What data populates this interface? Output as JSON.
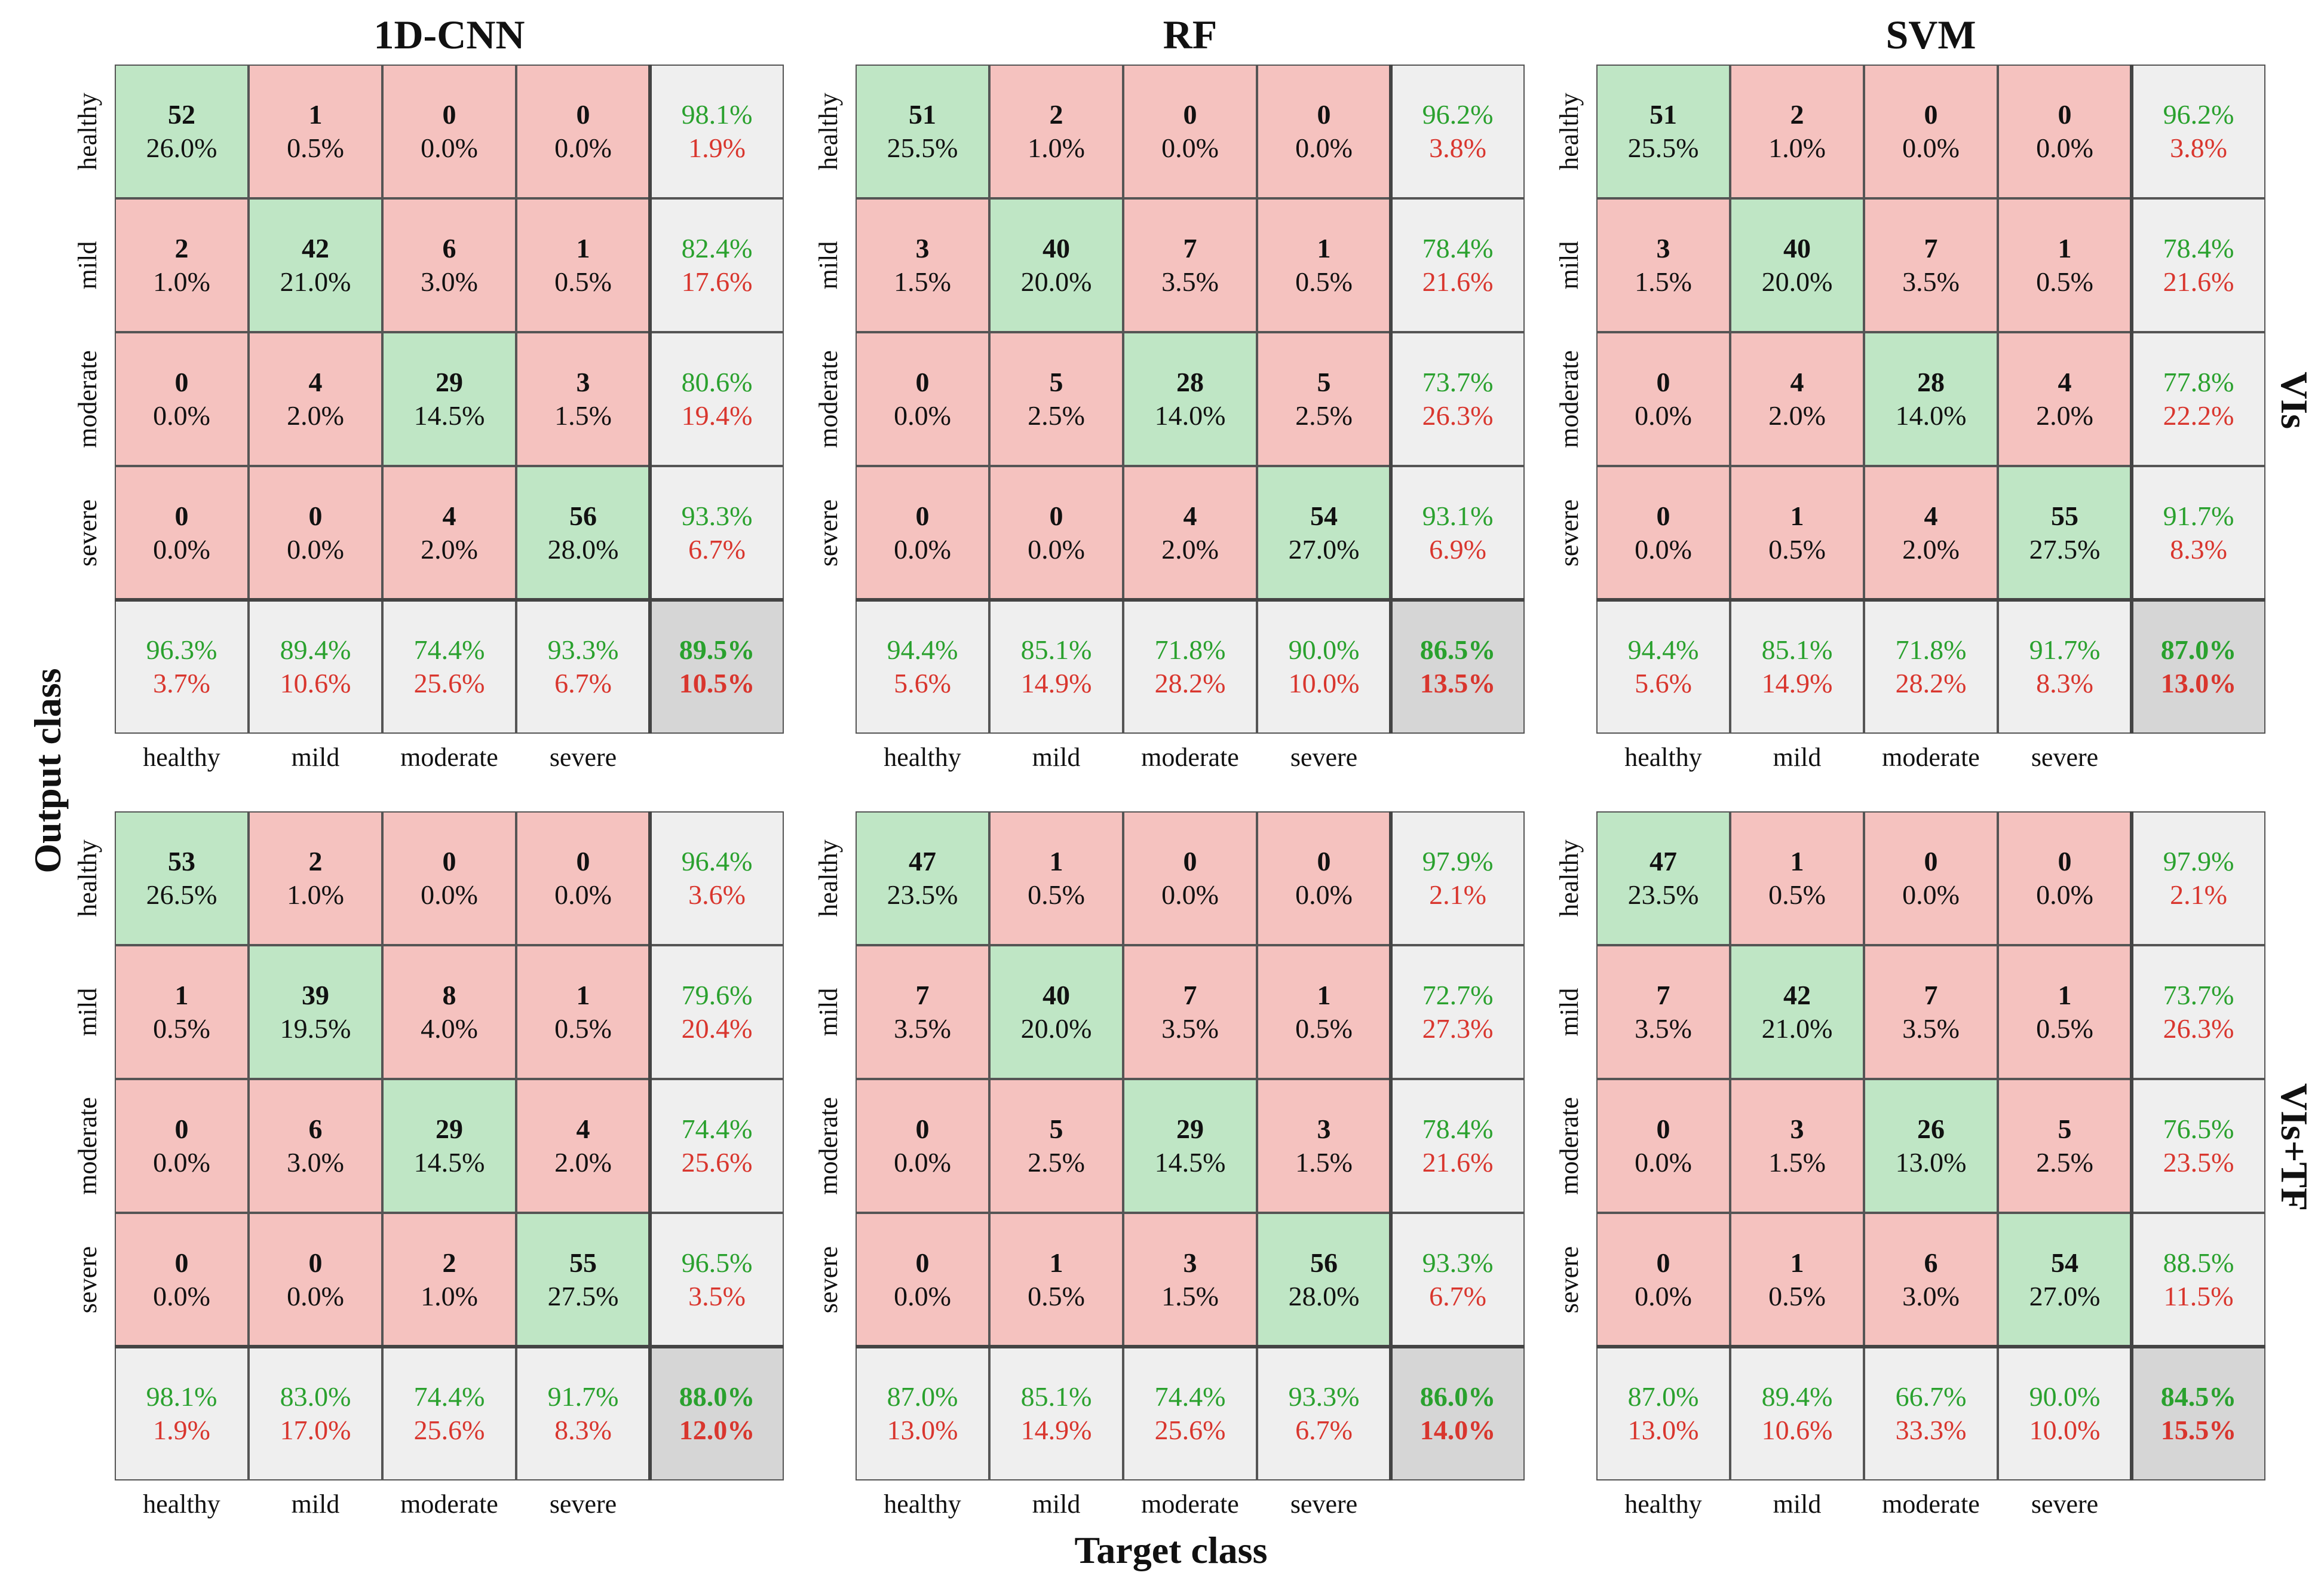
{
  "colors": {
    "diagonal": "#bfe6c5",
    "off_diagonal": "#f5c2bf",
    "summary": "#efefef",
    "total": "#d6d6d6",
    "good_text": "#2aa12e",
    "bad_text": "#d9362e"
  },
  "chart_data": {
    "type": "heatmap",
    "xlabel": "Target class",
    "ylabel": "Output class",
    "classes": [
      "healthy",
      "mild",
      "moderate",
      "severe"
    ],
    "column_titles": [
      "1D-CNN",
      "RF",
      "SVM"
    ],
    "row_titles": [
      "VIs",
      "VIs+TF"
    ],
    "matrices": [
      {
        "model": "1D-CNN",
        "features": "VIs",
        "counts": [
          [
            52,
            1,
            0,
            0
          ],
          [
            2,
            42,
            6,
            1
          ],
          [
            0,
            4,
            29,
            3
          ],
          [
            0,
            0,
            4,
            56
          ]
        ],
        "percents": [
          [
            "26.0%",
            "0.5%",
            "0.0%",
            "0.0%"
          ],
          [
            "1.0%",
            "21.0%",
            "3.0%",
            "0.5%"
          ],
          [
            "0.0%",
            "2.0%",
            "14.5%",
            "1.5%"
          ],
          [
            "0.0%",
            "0.0%",
            "2.0%",
            "28.0%"
          ]
        ],
        "row_summary": [
          [
            "98.1%",
            "1.9%"
          ],
          [
            "82.4%",
            "17.6%"
          ],
          [
            "80.6%",
            "19.4%"
          ],
          [
            "93.3%",
            "6.7%"
          ]
        ],
        "col_summary": [
          [
            "96.3%",
            "3.7%"
          ],
          [
            "89.4%",
            "10.6%"
          ],
          [
            "74.4%",
            "25.6%"
          ],
          [
            "93.3%",
            "6.7%"
          ]
        ],
        "overall": [
          "89.5%",
          "10.5%"
        ]
      },
      {
        "model": "RF",
        "features": "VIs",
        "counts": [
          [
            51,
            2,
            0,
            0
          ],
          [
            3,
            40,
            7,
            1
          ],
          [
            0,
            5,
            28,
            5
          ],
          [
            0,
            0,
            4,
            54
          ]
        ],
        "percents": [
          [
            "25.5%",
            "1.0%",
            "0.0%",
            "0.0%"
          ],
          [
            "1.5%",
            "20.0%",
            "3.5%",
            "0.5%"
          ],
          [
            "0.0%",
            "2.5%",
            "14.0%",
            "2.5%"
          ],
          [
            "0.0%",
            "0.0%",
            "2.0%",
            "27.0%"
          ]
        ],
        "row_summary": [
          [
            "96.2%",
            "3.8%"
          ],
          [
            "78.4%",
            "21.6%"
          ],
          [
            "73.7%",
            "26.3%"
          ],
          [
            "93.1%",
            "6.9%"
          ]
        ],
        "col_summary": [
          [
            "94.4%",
            "5.6%"
          ],
          [
            "85.1%",
            "14.9%"
          ],
          [
            "71.8%",
            "28.2%"
          ],
          [
            "90.0%",
            "10.0%"
          ]
        ],
        "overall": [
          "86.5%",
          "13.5%"
        ]
      },
      {
        "model": "SVM",
        "features": "VIs",
        "counts": [
          [
            51,
            2,
            0,
            0
          ],
          [
            3,
            40,
            7,
            1
          ],
          [
            0,
            4,
            28,
            4
          ],
          [
            0,
            1,
            4,
            55
          ]
        ],
        "percents": [
          [
            "25.5%",
            "1.0%",
            "0.0%",
            "0.0%"
          ],
          [
            "1.5%",
            "20.0%",
            "3.5%",
            "0.5%"
          ],
          [
            "0.0%",
            "2.0%",
            "14.0%",
            "2.0%"
          ],
          [
            "0.0%",
            "0.5%",
            "2.0%",
            "27.5%"
          ]
        ],
        "row_summary": [
          [
            "96.2%",
            "3.8%"
          ],
          [
            "78.4%",
            "21.6%"
          ],
          [
            "77.8%",
            "22.2%"
          ],
          [
            "91.7%",
            "8.3%"
          ]
        ],
        "col_summary": [
          [
            "94.4%",
            "5.6%"
          ],
          [
            "85.1%",
            "14.9%"
          ],
          [
            "71.8%",
            "28.2%"
          ],
          [
            "91.7%",
            "8.3%"
          ]
        ],
        "overall": [
          "87.0%",
          "13.0%"
        ]
      },
      {
        "model": "1D-CNN",
        "features": "VIs+TF",
        "counts": [
          [
            53,
            2,
            0,
            0
          ],
          [
            1,
            39,
            8,
            1
          ],
          [
            0,
            6,
            29,
            4
          ],
          [
            0,
            0,
            2,
            55
          ]
        ],
        "percents": [
          [
            "26.5%",
            "1.0%",
            "0.0%",
            "0.0%"
          ],
          [
            "0.5%",
            "19.5%",
            "4.0%",
            "0.5%"
          ],
          [
            "0.0%",
            "3.0%",
            "14.5%",
            "2.0%"
          ],
          [
            "0.0%",
            "0.0%",
            "1.0%",
            "27.5%"
          ]
        ],
        "row_summary": [
          [
            "96.4%",
            "3.6%"
          ],
          [
            "79.6%",
            "20.4%"
          ],
          [
            "74.4%",
            "25.6%"
          ],
          [
            "96.5%",
            "3.5%"
          ]
        ],
        "col_summary": [
          [
            "98.1%",
            "1.9%"
          ],
          [
            "83.0%",
            "17.0%"
          ],
          [
            "74.4%",
            "25.6%"
          ],
          [
            "91.7%",
            "8.3%"
          ]
        ],
        "overall": [
          "88.0%",
          "12.0%"
        ]
      },
      {
        "model": "RF",
        "features": "VIs+TF",
        "counts": [
          [
            47,
            1,
            0,
            0
          ],
          [
            7,
            40,
            7,
            1
          ],
          [
            0,
            5,
            29,
            3
          ],
          [
            0,
            1,
            3,
            56
          ]
        ],
        "percents": [
          [
            "23.5%",
            "0.5%",
            "0.0%",
            "0.0%"
          ],
          [
            "3.5%",
            "20.0%",
            "3.5%",
            "0.5%"
          ],
          [
            "0.0%",
            "2.5%",
            "14.5%",
            "1.5%"
          ],
          [
            "0.0%",
            "0.5%",
            "1.5%",
            "28.0%"
          ]
        ],
        "row_summary": [
          [
            "97.9%",
            "2.1%"
          ],
          [
            "72.7%",
            "27.3%"
          ],
          [
            "78.4%",
            "21.6%"
          ],
          [
            "93.3%",
            "6.7%"
          ]
        ],
        "col_summary": [
          [
            "87.0%",
            "13.0%"
          ],
          [
            "85.1%",
            "14.9%"
          ],
          [
            "74.4%",
            "25.6%"
          ],
          [
            "93.3%",
            "6.7%"
          ]
        ],
        "overall": [
          "86.0%",
          "14.0%"
        ]
      },
      {
        "model": "SVM",
        "features": "VIs+TF",
        "counts": [
          [
            47,
            1,
            0,
            0
          ],
          [
            7,
            42,
            7,
            1
          ],
          [
            0,
            3,
            26,
            5
          ],
          [
            0,
            1,
            6,
            54
          ]
        ],
        "percents": [
          [
            "23.5%",
            "0.5%",
            "0.0%",
            "0.0%"
          ],
          [
            "3.5%",
            "21.0%",
            "3.5%",
            "0.5%"
          ],
          [
            "0.0%",
            "1.5%",
            "13.0%",
            "2.5%"
          ],
          [
            "0.0%",
            "0.5%",
            "3.0%",
            "27.0%"
          ]
        ],
        "row_summary": [
          [
            "97.9%",
            "2.1%"
          ],
          [
            "73.7%",
            "26.3%"
          ],
          [
            "76.5%",
            "23.5%"
          ],
          [
            "88.5%",
            "11.5%"
          ]
        ],
        "col_summary": [
          [
            "87.0%",
            "13.0%"
          ],
          [
            "89.4%",
            "10.6%"
          ],
          [
            "66.7%",
            "33.3%"
          ],
          [
            "90.0%",
            "10.0%"
          ]
        ],
        "overall": [
          "84.5%",
          "15.5%"
        ]
      }
    ]
  }
}
